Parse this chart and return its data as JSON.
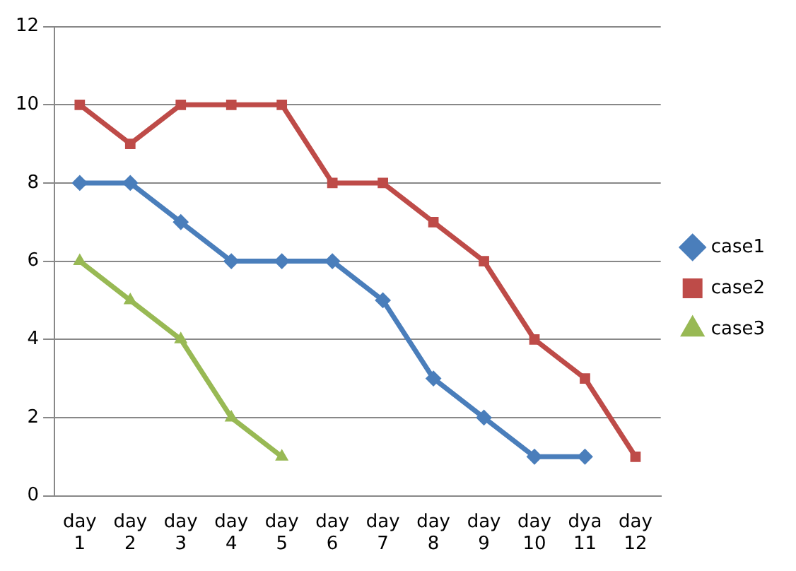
{
  "chart_data": {
    "type": "line",
    "categories": [
      "day 1",
      "day 2",
      "day 3",
      "day 4",
      "day 5",
      "day 6",
      "day 7",
      "day 8",
      "day 9",
      "day 10",
      "dya 11",
      "day 12"
    ],
    "series": [
      {
        "name": "case1",
        "color": "#4a7ebb",
        "marker": "diamond",
        "values": [
          8,
          8,
          7,
          6,
          6,
          6,
          5,
          3,
          2,
          1,
          1,
          null
        ]
      },
      {
        "name": "case2",
        "color": "#be4b48",
        "marker": "square",
        "values": [
          10,
          9,
          10,
          10,
          10,
          8,
          8,
          7,
          6,
          4,
          3,
          1
        ]
      },
      {
        "name": "case3",
        "color": "#98b954",
        "marker": "triangle",
        "values": [
          6,
          5,
          4,
          2,
          1,
          null,
          null,
          null,
          null,
          null,
          null,
          null
        ]
      }
    ],
    "ylim": [
      0,
      12
    ],
    "yticks": [
      0,
      2,
      4,
      6,
      8,
      10,
      12
    ],
    "grid": "y",
    "legend": "right"
  }
}
